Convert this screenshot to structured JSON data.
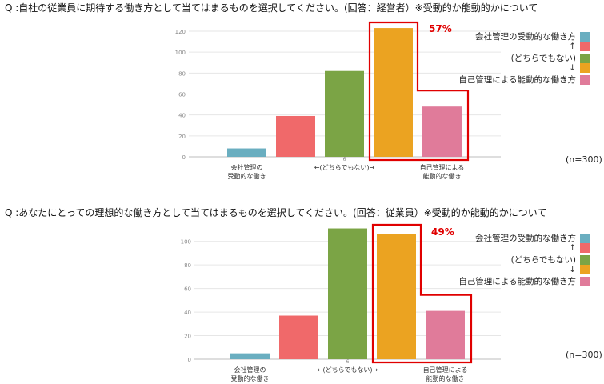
{
  "charts": [
    {
      "question": "Q :自社の従業員に期待する働き方として当てはまるものを選択してください。(回答：経営者）※受動的か能動的かについて",
      "n_note": "(n=300)",
      "highlight_label": "57%"
    },
    {
      "question": "Q :あなたにとっての理想的な働き方として当てはまるものを選択してください。(回答：従業員）※受動的か能動的かについて",
      "n_note": "(n=300)",
      "highlight_label": "49%"
    }
  ],
  "legend": {
    "items": [
      {
        "label": "会社管理の受動的な働き方",
        "color": "#6aaec0"
      },
      {
        "label": "↑",
        "color": "#f0696a"
      },
      {
        "label": "(どちらでもない)",
        "color": "#7ba445"
      },
      {
        "label": "↓",
        "color": "#eba321"
      },
      {
        "label": "自己管理による能動的な働き方",
        "color": "#e07b9a"
      }
    ]
  },
  "chart_data": [
    {
      "type": "bar",
      "categories": [
        "1",
        "2",
        "3",
        "4",
        "5"
      ],
      "x_tick_labels": [
        {
          "index": 0,
          "lines": [
            "会社管理の",
            "受動的な働き"
          ]
        },
        {
          "index": 2,
          "lines": [
            "←(どちらでもない)→"
          ],
          "small": "6"
        },
        {
          "index": 4,
          "lines": [
            "自己管理による",
            "能動的な働き"
          ]
        }
      ],
      "values": [
        8,
        39,
        82,
        123,
        48
      ],
      "colors": [
        "#6aaec0",
        "#f0696a",
        "#7ba445",
        "#eba321",
        "#e07b9a"
      ],
      "ylim": [
        0,
        120
      ],
      "yticks": [
        0,
        20,
        40,
        60,
        80,
        100,
        120
      ],
      "grid": true
    },
    {
      "type": "bar",
      "categories": [
        "1",
        "2",
        "3",
        "4",
        "5"
      ],
      "x_tick_labels": [
        {
          "index": 0,
          "lines": [
            "会社管理の",
            "受動的な働き"
          ]
        },
        {
          "index": 2,
          "lines": [
            "←(どちらでもない)→"
          ],
          "small": "6"
        },
        {
          "index": 4,
          "lines": [
            "自己管理による",
            "能動的な働き"
          ]
        }
      ],
      "values": [
        5,
        37,
        111,
        106,
        41
      ],
      "colors": [
        "#6aaec0",
        "#f0696a",
        "#7ba445",
        "#eba321",
        "#e07b9a"
      ],
      "ylim": [
        0,
        110
      ],
      "yticks": [
        0,
        20,
        40,
        60,
        80,
        100
      ],
      "grid": true
    }
  ]
}
